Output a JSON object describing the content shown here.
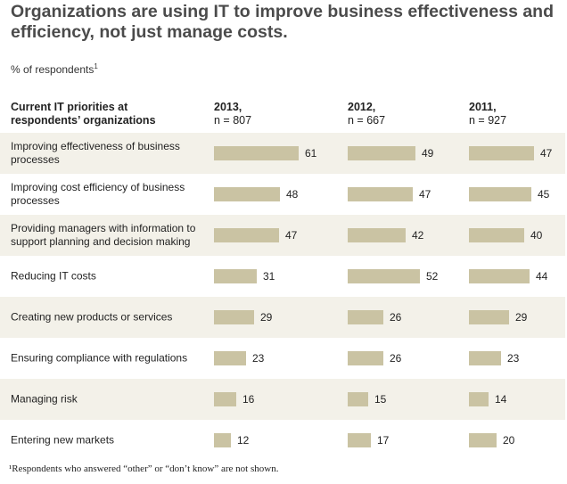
{
  "title": "Organizations are using IT to improve business effectiveness and efficiency, not just manage costs.",
  "subtitle": "% of respondents",
  "subtitle_note_marker": "1",
  "row_header": "Current IT priorities at respondents’ organizations",
  "footnote": "¹Respondents who answered “other” or “don’t know” are not shown.",
  "colors": {
    "bar": "#cac3a3",
    "row_shade": "#f3f1e9",
    "title": "#4b4b4b"
  },
  "chart_data": {
    "type": "bar",
    "orientation": "horizontal",
    "categories": [
      "Improving effectiveness of business processes",
      "Improving cost efficiency of business processes",
      "Providing managers with information to support planning and decision making",
      "Reducing IT costs",
      "Creating new products or services",
      "Ensuring compliance with regulations",
      "Managing risk",
      "Entering new markets"
    ],
    "series": [
      {
        "name": "2013,",
        "n": "n = 807",
        "values": [
          61,
          48,
          47,
          31,
          29,
          23,
          16,
          12
        ]
      },
      {
        "name": "2012,",
        "n": "n = 667",
        "values": [
          49,
          47,
          42,
          52,
          26,
          26,
          15,
          17
        ]
      },
      {
        "name": "2011,",
        "n": "n = 927",
        "values": [
          47,
          45,
          40,
          44,
          29,
          23,
          14,
          20
        ]
      }
    ]
  }
}
